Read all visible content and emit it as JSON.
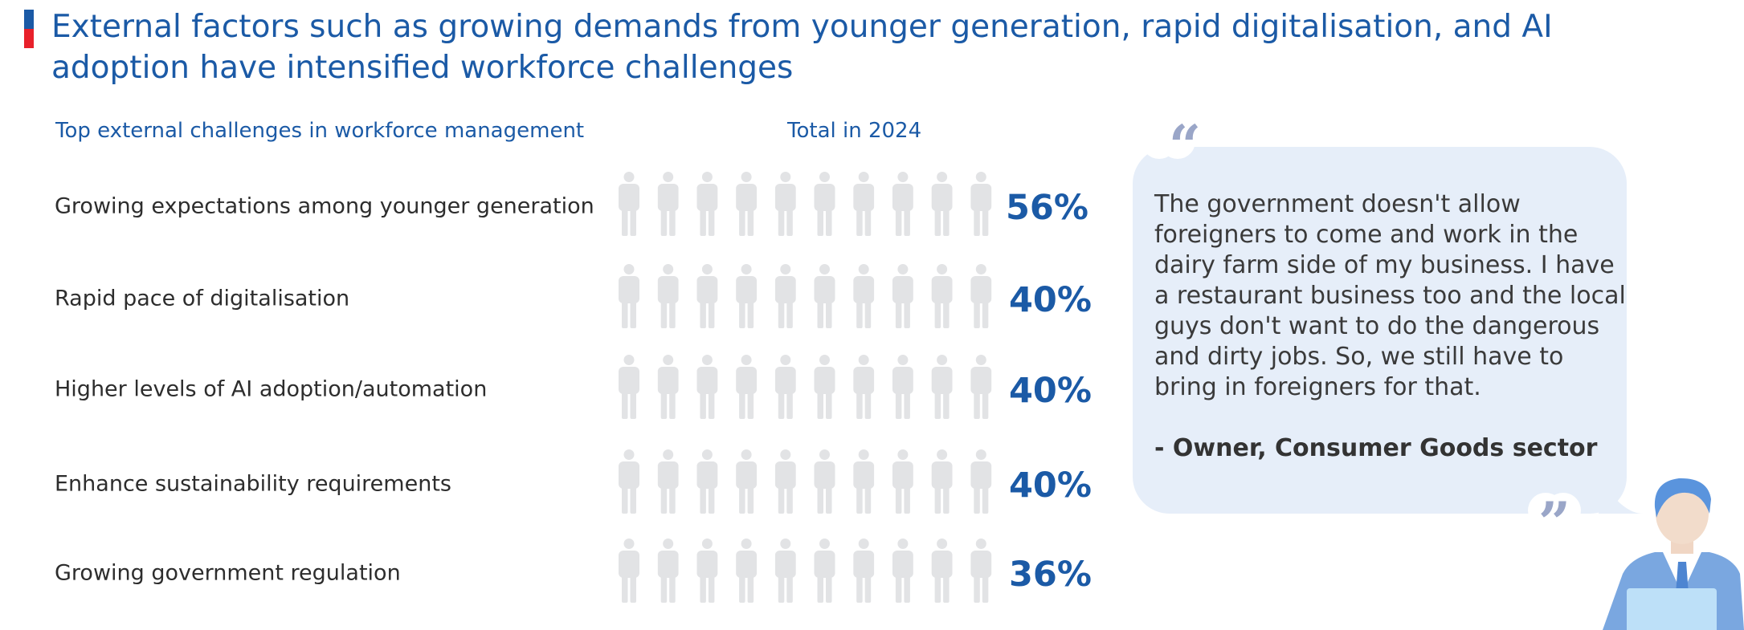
{
  "title": "External factors such as growing demands from younger generation, rapid digitalisation, and AI adoption have intensified workforce challenges",
  "quote": {
    "text": "The government doesn't allow foreigners to come and work in the dairy farm side of my business. I have a restaurant business too and the local guys don't want to do the dangerous and dirty jobs. So, we still have to bring in foreigners for that.",
    "author": "- Owner, Consumer Goods sector"
  },
  "colors": {
    "accent": "#1b5aa6",
    "inactive": "#e2e3e5",
    "bubble": "#e6eef9",
    "title_bar_red": "#e8202a"
  },
  "chart_data": {
    "type": "pictogram",
    "title": "Top external challenges in workforce management",
    "column_header": "Total in 2024",
    "icons_per_row": 10,
    "unit": "%",
    "categories": [
      "Growing expectations among younger generation",
      "Rapid pace of digitalisation",
      "Higher levels of AI adoption/automation",
      "Enhance sustainability requirements",
      "Growing government regulation"
    ],
    "values": [
      56,
      40,
      40,
      40,
      36
    ],
    "labels": [
      "56%",
      "40%",
      "40%",
      "40%",
      "36%"
    ]
  }
}
